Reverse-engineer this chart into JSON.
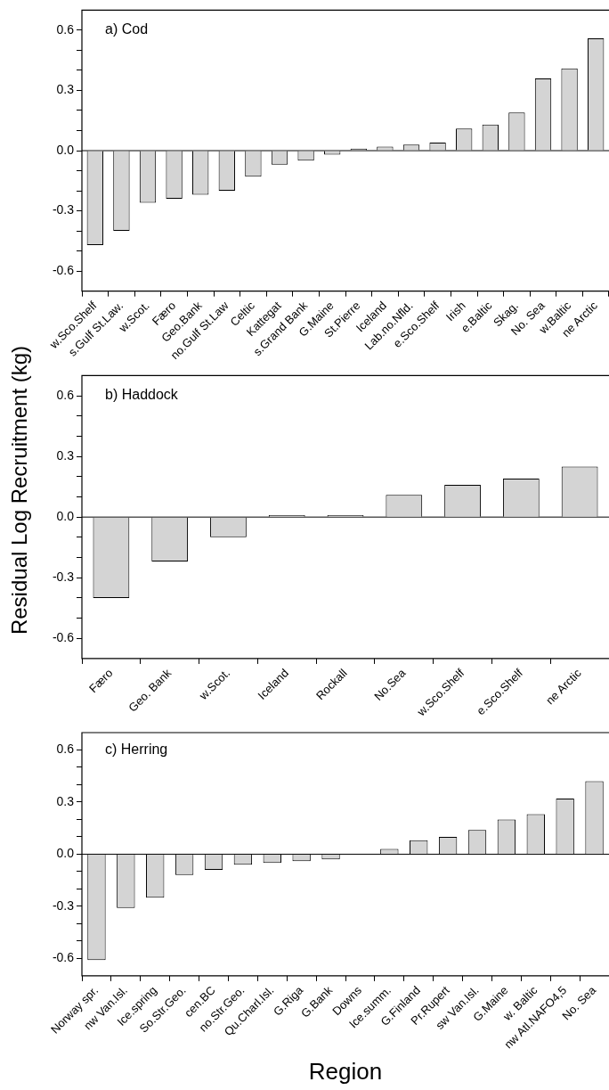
{
  "chart_data": [
    {
      "type": "bar",
      "title": "a) Cod",
      "categories": [
        "w.Sco.Shelf",
        "s.Gulf St.Law.",
        "w.Scot.",
        "Færo",
        "Geo.Bank",
        "no.Gulf St.Law",
        "Celtic",
        "Kattegat",
        "s.Grand Bank",
        "G.Maine",
        "St.Pierre",
        "Iceland",
        "Lab.no.Nfld.",
        "e.Sco.Shelf",
        "Irish",
        "e.Baltic",
        "Skag.",
        "No. Sea",
        "w.Baltic",
        "ne Arctic"
      ],
      "values": [
        -0.47,
        -0.4,
        -0.26,
        -0.24,
        -0.22,
        -0.2,
        -0.13,
        -0.07,
        -0.05,
        -0.02,
        0.01,
        0.02,
        0.03,
        0.04,
        0.11,
        0.13,
        0.19,
        0.36,
        0.41,
        0.56
      ],
      "color": "#d4d4d4",
      "ylim": [
        -0.7,
        0.7
      ],
      "yticks": [
        {
          "value": -0.6,
          "label": "-0.6"
        },
        {
          "value": -0.5,
          "label": null
        },
        {
          "value": -0.4,
          "label": null
        },
        {
          "value": -0.3,
          "label": "-0.3"
        },
        {
          "value": -0.2,
          "label": null
        },
        {
          "value": -0.1,
          "label": null
        },
        {
          "value": 0,
          "label": "0.0"
        },
        {
          "value": 0.1,
          "label": null
        },
        {
          "value": 0.2,
          "label": null
        },
        {
          "value": 0.3,
          "label": "0.3"
        },
        {
          "value": 0.4,
          "label": null
        },
        {
          "value": 0.5,
          "label": null
        },
        {
          "value": 0.6,
          "label": "0.6"
        }
      ]
    },
    {
      "type": "bar",
      "title": "b) Haddock",
      "ylabel": "Residual Log Recruitment (kg)",
      "categories": [
        "Færo",
        "Geo. Bank",
        "w.Scot.",
        "Iceland",
        "Rockall",
        "No.Sea",
        "w.Sco.Shelf",
        "e.Sco.Shelf",
        "ne Arctic"
      ],
      "values": [
        -0.4,
        -0.22,
        -0.1,
        0.01,
        0.01,
        0.11,
        0.16,
        0.19,
        0.25
      ],
      "color": "#d4d4d4",
      "ylim": [
        -0.7,
        0.7
      ],
      "yticks": [
        {
          "value": -0.6,
          "label": "-0.6"
        },
        {
          "value": -0.5,
          "label": null
        },
        {
          "value": -0.4,
          "label": null
        },
        {
          "value": -0.3,
          "label": "-0.3"
        },
        {
          "value": -0.2,
          "label": null
        },
        {
          "value": -0.1,
          "label": null
        },
        {
          "value": 0,
          "label": "0.0"
        },
        {
          "value": 0.1,
          "label": null
        },
        {
          "value": 0.2,
          "label": null
        },
        {
          "value": 0.3,
          "label": "0.3"
        },
        {
          "value": 0.4,
          "label": null
        },
        {
          "value": 0.5,
          "label": null
        },
        {
          "value": 0.6,
          "label": "0.6"
        }
      ]
    },
    {
      "type": "bar",
      "title": "c) Herring",
      "xlabel": "Region",
      "categories": [
        "Norway spr.",
        "nw Van.Isl.",
        "Ice.spring",
        "So.Str.Geo.",
        "cen.BC",
        "no.Str.Geo.",
        "Qu.Charl.Isl.",
        "G.Riga",
        "G.Bank",
        "Downs",
        "Ice.summ.",
        "G.Finland",
        "Pr.Rupert",
        "sw Van.Isl.",
        "G.Maine",
        "w. Baltic",
        "nw Atl.NAFO4,5",
        "No. Sea"
      ],
      "values": [
        -0.61,
        -0.31,
        -0.25,
        -0.12,
        -0.09,
        -0.06,
        -0.05,
        -0.04,
        -0.03,
        0,
        0.03,
        0.08,
        0.1,
        0.14,
        0.2,
        0.23,
        0.32,
        0.42
      ],
      "color": "#d4d4d4",
      "ylim": [
        -0.7,
        0.7
      ],
      "yticks": [
        {
          "value": -0.6,
          "label": "-0.6"
        },
        {
          "value": -0.5,
          "label": null
        },
        {
          "value": -0.4,
          "label": null
        },
        {
          "value": -0.3,
          "label": "-0.3"
        },
        {
          "value": -0.2,
          "label": null
        },
        {
          "value": -0.1,
          "label": null
        },
        {
          "value": 0,
          "label": "0.0"
        },
        {
          "value": 0.1,
          "label": null
        },
        {
          "value": 0.2,
          "label": null
        },
        {
          "value": 0.3,
          "label": "0.3"
        },
        {
          "value": 0.4,
          "label": null
        },
        {
          "value": 0.5,
          "label": null
        },
        {
          "value": 0.6,
          "label": "0.6"
        }
      ]
    }
  ]
}
